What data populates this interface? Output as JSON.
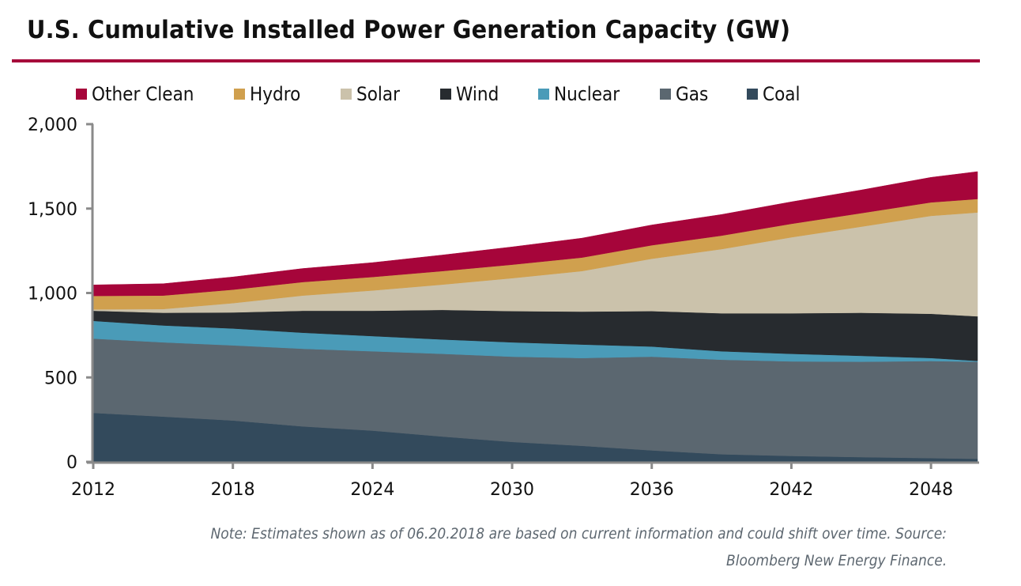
{
  "chart_data": {
    "type": "area",
    "stacked": true,
    "title": "U.S. Cumulative Installed Power Generation Capacity (GW)",
    "xlabel": "",
    "ylabel": "",
    "ylim": [
      0,
      2000
    ],
    "xlim": [
      2012,
      2050
    ],
    "yticks": [
      0,
      500,
      1000,
      1500,
      2000
    ],
    "ytick_labels": [
      "0",
      "500",
      "1,000",
      "1,500",
      "2,000"
    ],
    "xticks": [
      2012,
      2018,
      2024,
      2030,
      2036,
      2042,
      2048
    ],
    "xtick_labels": [
      "2012",
      "2018",
      "2024",
      "2030",
      "2036",
      "2042",
      "2048"
    ],
    "grid": false,
    "legend_position": "top",
    "x": [
      2012,
      2015,
      2018,
      2021,
      2024,
      2027,
      2030,
      2033,
      2036,
      2039,
      2042,
      2045,
      2048,
      2050
    ],
    "series": [
      {
        "name": "Coal",
        "color": "#334a5c",
        "values": [
          290,
          268,
          245,
          210,
          185,
          150,
          118,
          95,
          68,
          45,
          35,
          28,
          22,
          18
        ]
      },
      {
        "name": "Gas",
        "color": "#5b6770",
        "values": [
          440,
          440,
          445,
          460,
          470,
          490,
          505,
          520,
          555,
          560,
          560,
          565,
          575,
          575
        ]
      },
      {
        "name": "Nuclear",
        "color": "#4a9bb8",
        "values": [
          105,
          100,
          100,
          95,
          90,
          85,
          85,
          80,
          60,
          50,
          45,
          35,
          18,
          5
        ]
      },
      {
        "name": "Wind",
        "color": "#272b2f",
        "values": [
          60,
          75,
          95,
          130,
          150,
          175,
          185,
          195,
          210,
          225,
          240,
          255,
          262,
          264
        ]
      },
      {
        "name": "Solar",
        "color": "#cbc2ab",
        "values": [
          8,
          22,
          55,
          90,
          120,
          150,
          195,
          240,
          310,
          380,
          450,
          510,
          580,
          615
        ]
      },
      {
        "name": "Hydro",
        "color": "#d0a04e",
        "values": [
          80,
          80,
          80,
          80,
          80,
          80,
          80,
          80,
          80,
          80,
          80,
          80,
          80,
          80
        ]
      },
      {
        "name": "Other Clean",
        "color": "#a6053a",
        "values": [
          65,
          70,
          75,
          80,
          85,
          95,
          105,
          115,
          120,
          125,
          130,
          137,
          148,
          162
        ]
      }
    ]
  },
  "legend": [
    {
      "label": "Other Clean",
      "color": "#a6053a"
    },
    {
      "label": "Hydro",
      "color": "#d0a04e"
    },
    {
      "label": "Solar",
      "color": "#cbc2ab"
    },
    {
      "label": "Wind",
      "color": "#272b2f"
    },
    {
      "label": "Nuclear",
      "color": "#4a9bb8"
    },
    {
      "label": "Gas",
      "color": "#5b6770"
    },
    {
      "label": "Coal",
      "color": "#334a5c"
    }
  ],
  "accent_color": "#a6053a",
  "note_line1": "Note: Estimates shown as of 06.20.2018 are based on current information and could shift over time. Source:",
  "note_line2": "Bloomberg New Energy Finance."
}
